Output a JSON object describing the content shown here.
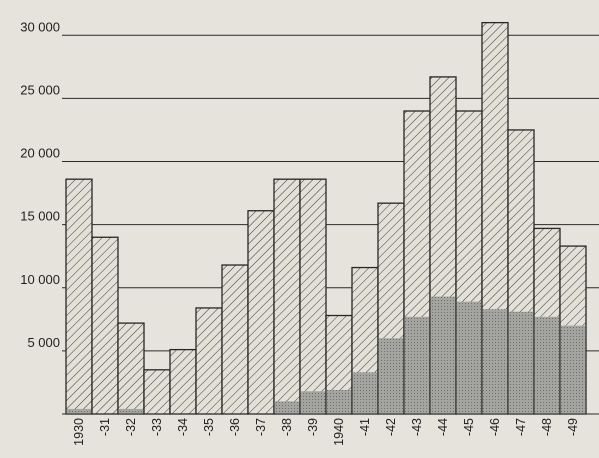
{
  "chart_data": {
    "type": "bar",
    "stacked_overlay": true,
    "categories": [
      "1930",
      "-31",
      "-32",
      "-33",
      "-34",
      "-35",
      "-36",
      "-37",
      "-38",
      "-39",
      "1940",
      "-41",
      "-42",
      "-43",
      "-44",
      "-45",
      "-46",
      "-47",
      "-48",
      "-49"
    ],
    "series": [
      {
        "values": [
          18600,
          14000,
          7200,
          3500,
          5100,
          8400,
          11800,
          16100,
          18600,
          18600,
          7800,
          11600,
          16700,
          24000,
          26700,
          24000,
          31000,
          22500,
          14700,
          13300
        ]
      },
      {
        "values": [
          400,
          0,
          400,
          0,
          0,
          0,
          0,
          0,
          1000,
          1800,
          1900,
          3300,
          6000,
          7700,
          9300,
          8900,
          8300,
          8100,
          7700,
          7000
        ]
      }
    ],
    "yticks": [
      "5 000",
      "10 000",
      "15 000",
      "20 000",
      "25 000",
      "30 000"
    ],
    "ytick_values": [
      5000,
      10000,
      15000,
      20000,
      25000,
      30000
    ],
    "ylim": [
      0,
      32000
    ],
    "grid": true,
    "colors": {
      "background": "#e6e3dc",
      "ink": "#262626",
      "hatch": "#3a3a3a",
      "inner": "#9a9a96"
    }
  }
}
